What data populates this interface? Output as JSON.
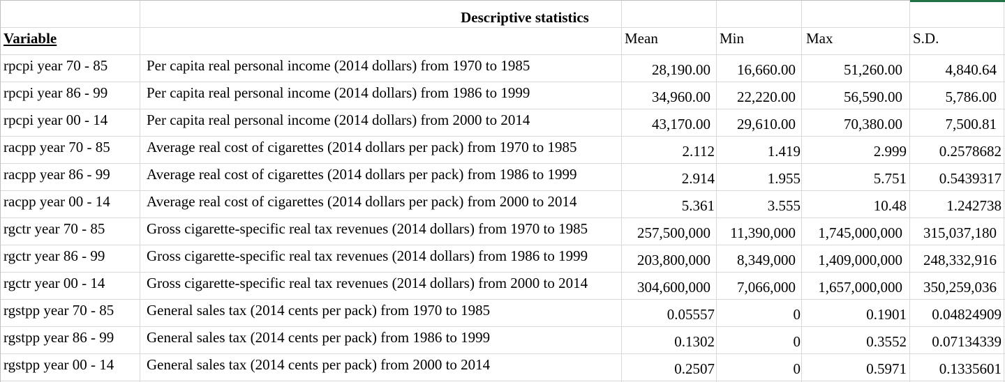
{
  "sheet": {
    "title": "Descriptive statistics",
    "selection_color": "#217346",
    "headers": {
      "variable": "Variable",
      "description": "",
      "mean": "Mean",
      "min": "Min",
      "max": "Max",
      "sd": "S.D."
    },
    "rows": [
      {
        "variable": "rpcpi year 70 - 85",
        "description": "Per capita real personal income (2014 dollars) from 1970 to 1985",
        "mean": "28,190.00",
        "min": "16,660.00",
        "max": "51,260.00",
        "sd": "4,840.64"
      },
      {
        "variable": "rpcpi year 86 - 99",
        "description": "Per capita real personal income (2014 dollars) from 1986 to 1999",
        "mean": "34,960.00",
        "min": "22,220.00",
        "max": "56,590.00",
        "sd": "5,786.00"
      },
      {
        "variable": "rpcpi year 00 - 14",
        "description": "Per capita real personal income (2014 dollars) from 2000 to 2014",
        "mean": "43,170.00",
        "min": "29,610.00",
        "max": "70,380.00",
        "sd": "7,500.81"
      },
      {
        "variable": "racpp year 70 - 85",
        "description": "Average real cost of cigarettes (2014 dollars per pack) from 1970 to 1985",
        "mean": "2.112",
        "min": "1.419",
        "max": "2.999",
        "sd": "0.2578682"
      },
      {
        "variable": "racpp year 86 - 99",
        "description": "Average real cost of cigarettes (2014 dollars per pack) from 1986 to 1999",
        "mean": "2.914",
        "min": "1.955",
        "max": "5.751",
        "sd": "0.5439317"
      },
      {
        "variable": "racpp year 00 - 14",
        "description": "Average real cost of cigarettes (2014 dollars per pack) from 2000 to 2014",
        "mean": "5.361",
        "min": "3.555",
        "max": "10.48",
        "sd": "1.242738"
      },
      {
        "variable": "rgctr year 70 - 85",
        "description": "Gross cigarette-specific real tax revenues (2014 dollars) from 1970 to 1985",
        "mean": "257,500,000",
        "min": "11,390,000",
        "max": "1,745,000,000",
        "sd": "315,037,180"
      },
      {
        "variable": "rgctr year 86 - 99",
        "description": "Gross cigarette-specific real tax revenues (2014 dollars) from 1986 to 1999",
        "mean": "203,800,000",
        "min": "8,349,000",
        "max": "1,409,000,000",
        "sd": "248,332,916"
      },
      {
        "variable": "rgctr year 00 - 14",
        "description": "Gross cigarette-specific real tax revenues (2014 dollars) from 2000 to 2014",
        "mean": "304,600,000",
        "min": "7,066,000",
        "max": "1,657,000,000",
        "sd": "350,259,036"
      },
      {
        "variable": "rgstpp year 70 - 85",
        "description": "General sales tax (2014 cents per pack) from 1970 to 1985",
        "mean": "0.05557",
        "min": "0",
        "max": "0.1901",
        "sd": "0.04824909"
      },
      {
        "variable": "rgstpp year 86 - 99",
        "description": "General sales tax (2014 cents per pack) from 1986 to 1999",
        "mean": "0.1302",
        "min": "0",
        "max": "0.3552",
        "sd": "0.07134339"
      },
      {
        "variable": "rgstpp year 00 - 14",
        "description": "General sales tax (2014 cents per pack) from 2000 to 2014",
        "mean": "0.2507",
        "min": "0",
        "max": "0.5971",
        "sd": "0.1335601"
      }
    ]
  }
}
